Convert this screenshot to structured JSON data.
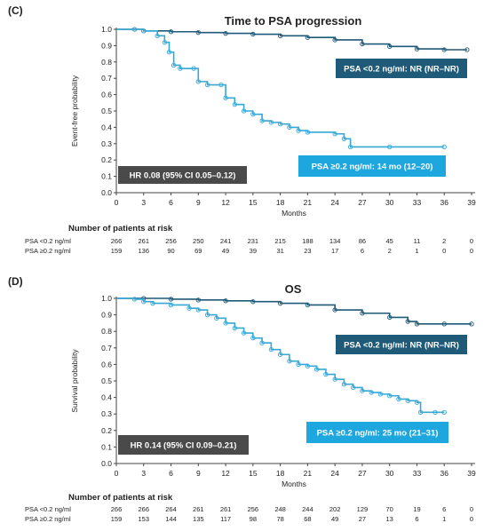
{
  "colors": {
    "psa_low": "#1f5a78",
    "psa_high": "#35a8d6",
    "hr_box": "#4a4a4a",
    "low_box": "#1f5a78",
    "high_box": "#1ea6de"
  },
  "panels": [
    {
      "label": "(C)",
      "title": "Time to PSA progression",
      "ylabel": "Event-free probability",
      "xlabel": "Months",
      "hr_text": "HR 0.08 (95% CI 0.05–0.12)",
      "low_text": "PSA <0.2 ng/ml: NR (NR–NR)",
      "high_text": "PSA ≥0.2 ng/ml: 14 mo (12–20)",
      "risk_title": "Number of patients at risk",
      "risk_rows": [
        {
          "label": "PSA <0.2 ng/ml",
          "values": [
            "266",
            "261",
            "256",
            "250",
            "241",
            "231",
            "215",
            "188",
            "134",
            "86",
            "45",
            "11",
            "2",
            "0"
          ]
        },
        {
          "label": "PSA ≥0.2 ng/ml",
          "values": [
            "159",
            "136",
            "90",
            "69",
            "49",
            "39",
            "31",
            "23",
            "17",
            "6",
            "2",
            "1",
            "0",
            "0"
          ]
        }
      ]
    },
    {
      "label": "(D)",
      "title": "OS",
      "ylabel": "Survival probability",
      "xlabel": "Months",
      "hr_text": "HR 0.14 (95% CI 0.09–0.21)",
      "low_text": "PSA <0.2 ng/ml: NR (NR–NR)",
      "high_text": "PSA ≥0.2 ng/ml: 25 mo (21–31)",
      "risk_title": "Number of patients at risk",
      "risk_rows": [
        {
          "label": "PSA <0.2 ng/ml",
          "values": [
            "266",
            "266",
            "264",
            "261",
            "261",
            "256",
            "248",
            "244",
            "202",
            "129",
            "70",
            "19",
            "6",
            "0"
          ]
        },
        {
          "label": "PSA ≥0.2 ng/ml",
          "values": [
            "159",
            "153",
            "144",
            "135",
            "117",
            "98",
            "78",
            "68",
            "49",
            "27",
            "13",
            "6",
            "1",
            "0"
          ]
        }
      ]
    }
  ],
  "chart_data": [
    {
      "type": "line",
      "title": "Time to PSA progression",
      "xlabel": "Months",
      "ylabel": "Event-free probability",
      "x_ticks": [
        0,
        3,
        6,
        9,
        12,
        15,
        18,
        21,
        24,
        27,
        30,
        33,
        36,
        39
      ],
      "y_ticks": [
        0.0,
        0.1,
        0.2,
        0.3,
        0.4,
        0.5,
        0.6,
        0.7,
        0.8,
        0.9,
        1.0
      ],
      "xlim": [
        0,
        39
      ],
      "ylim": [
        0,
        1
      ],
      "series": [
        {
          "name": "PSA <0.2 ng/ml",
          "points": [
            [
              0,
              1.0
            ],
            [
              2,
              1.0
            ],
            [
              3,
              0.99
            ],
            [
              6,
              0.985
            ],
            [
              9,
              0.98
            ],
            [
              12,
              0.975
            ],
            [
              15,
              0.97
            ],
            [
              18,
              0.96
            ],
            [
              21,
              0.95
            ],
            [
              24,
              0.935
            ],
            [
              27,
              0.91
            ],
            [
              30,
              0.895
            ],
            [
              33,
              0.88
            ],
            [
              36,
              0.875
            ],
            [
              38.5,
              0.875
            ]
          ]
        },
        {
          "name": "PSA ≥0.2 ng/ml",
          "points": [
            [
              0,
              1.0
            ],
            [
              2,
              1.0
            ],
            [
              3,
              0.99
            ],
            [
              4.5,
              0.96
            ],
            [
              5.3,
              0.92
            ],
            [
              5.8,
              0.86
            ],
            [
              6.3,
              0.78
            ],
            [
              7,
              0.76
            ],
            [
              8.5,
              0.76
            ],
            [
              9,
              0.68
            ],
            [
              10,
              0.66
            ],
            [
              11.5,
              0.66
            ],
            [
              12,
              0.58
            ],
            [
              13,
              0.54
            ],
            [
              14,
              0.5
            ],
            [
              15,
              0.48
            ],
            [
              16,
              0.44
            ],
            [
              17,
              0.43
            ],
            [
              18,
              0.42
            ],
            [
              19,
              0.4
            ],
            [
              20,
              0.38
            ],
            [
              21,
              0.37
            ],
            [
              24,
              0.36
            ],
            [
              25,
              0.33
            ],
            [
              25.7,
              0.28
            ],
            [
              30,
              0.28
            ],
            [
              36,
              0.28
            ]
          ]
        }
      ]
    },
    {
      "type": "line",
      "title": "OS",
      "xlabel": "Months",
      "ylabel": "Survival probability",
      "x_ticks": [
        0,
        3,
        6,
        9,
        12,
        15,
        18,
        21,
        24,
        27,
        30,
        33,
        36,
        39
      ],
      "y_ticks": [
        0.0,
        0.1,
        0.2,
        0.3,
        0.4,
        0.5,
        0.6,
        0.7,
        0.8,
        0.9,
        1.0
      ],
      "xlim": [
        0,
        39
      ],
      "ylim": [
        0,
        1
      ],
      "series": [
        {
          "name": "PSA <0.2 ng/ml",
          "points": [
            [
              0,
              1.0
            ],
            [
              3,
              1.0
            ],
            [
              6,
              0.995
            ],
            [
              9,
              0.99
            ],
            [
              12,
              0.985
            ],
            [
              15,
              0.98
            ],
            [
              18,
              0.97
            ],
            [
              21,
              0.96
            ],
            [
              24,
              0.93
            ],
            [
              27,
              0.91
            ],
            [
              30,
              0.885
            ],
            [
              32,
              0.86
            ],
            [
              33,
              0.845
            ],
            [
              36,
              0.845
            ],
            [
              39,
              0.845
            ]
          ]
        },
        {
          "name": "PSA ≥0.2 ng/ml",
          "points": [
            [
              0,
              1.0
            ],
            [
              2,
              0.995
            ],
            [
              3,
              0.98
            ],
            [
              4,
              0.97
            ],
            [
              6,
              0.96
            ],
            [
              8,
              0.94
            ],
            [
              9,
              0.93
            ],
            [
              10,
              0.9
            ],
            [
              11,
              0.88
            ],
            [
              12,
              0.85
            ],
            [
              13,
              0.82
            ],
            [
              14,
              0.79
            ],
            [
              15,
              0.76
            ],
            [
              16,
              0.73
            ],
            [
              17,
              0.69
            ],
            [
              18,
              0.66
            ],
            [
              19,
              0.62
            ],
            [
              20,
              0.6
            ],
            [
              21,
              0.59
            ],
            [
              22,
              0.57
            ],
            [
              23,
              0.54
            ],
            [
              24,
              0.51
            ],
            [
              25,
              0.48
            ],
            [
              26,
              0.46
            ],
            [
              27,
              0.44
            ],
            [
              28,
              0.43
            ],
            [
              29,
              0.42
            ],
            [
              30,
              0.41
            ],
            [
              31,
              0.39
            ],
            [
              32,
              0.38
            ],
            [
              33,
              0.37
            ],
            [
              33.4,
              0.31
            ],
            [
              35,
              0.31
            ],
            [
              36,
              0.31
            ]
          ]
        }
      ]
    }
  ]
}
